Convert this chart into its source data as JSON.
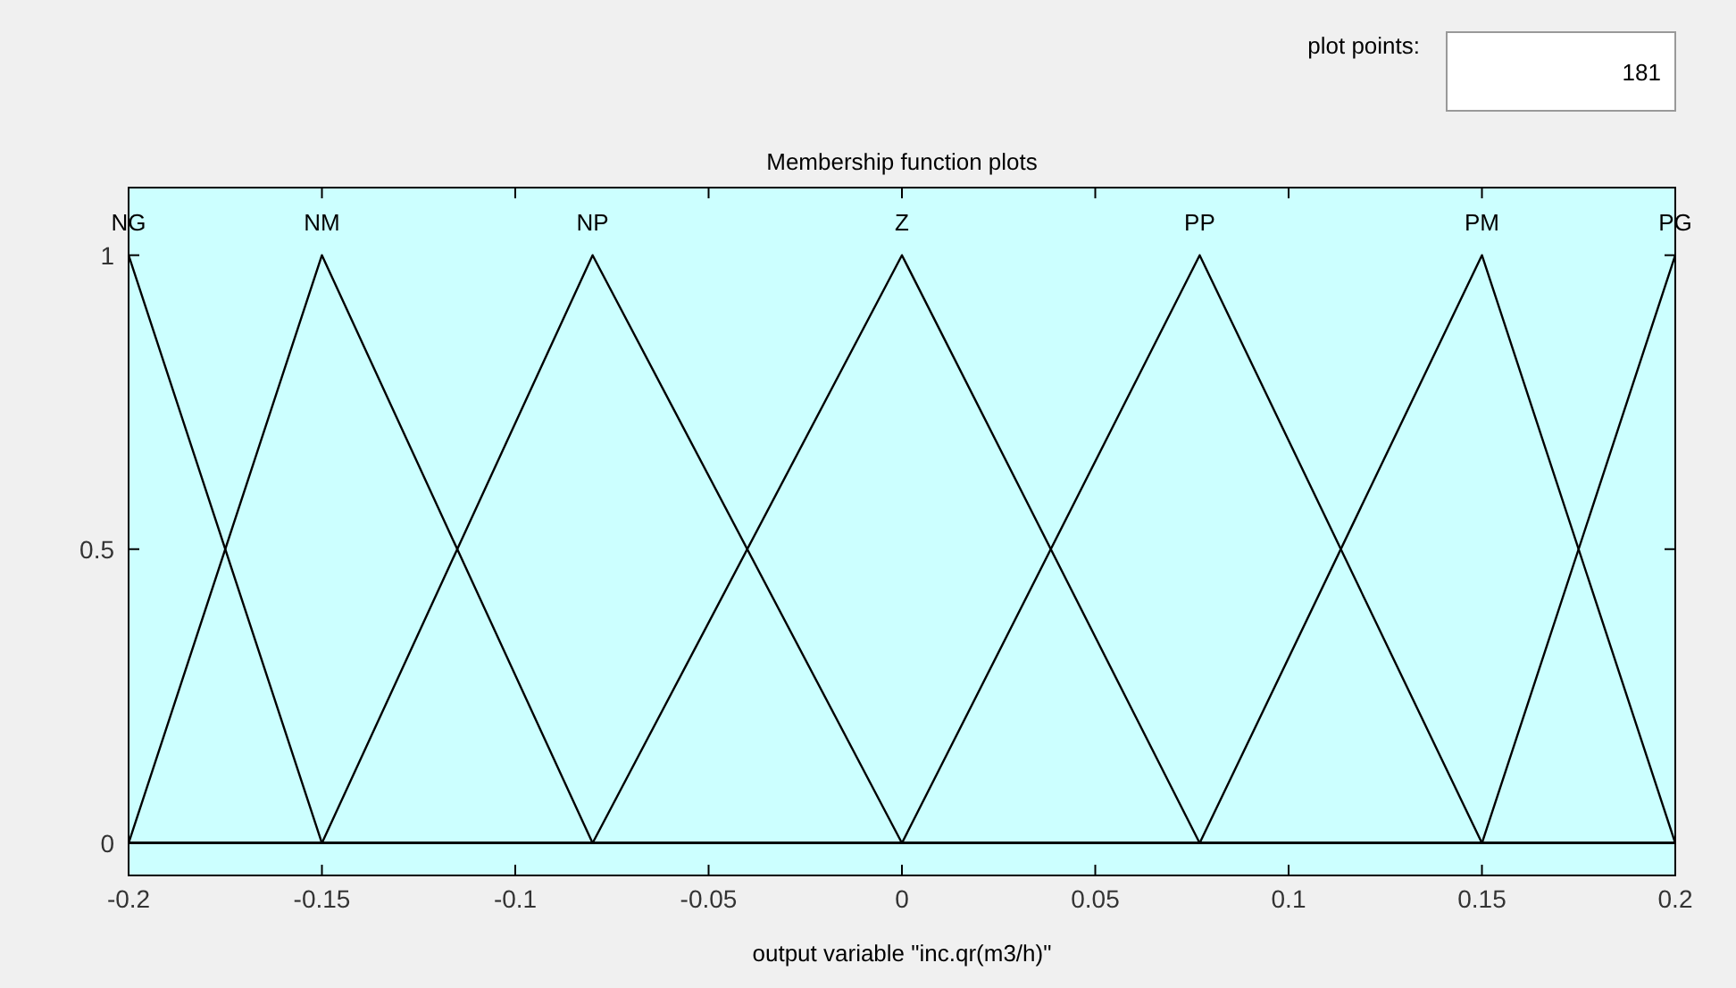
{
  "chart_data": {
    "type": "line",
    "title": "Membership function plots",
    "xlabel": "output variable \"inc.qr(m3/h)\"",
    "xlim": [
      -0.2,
      0.2
    ],
    "ylim": [
      -0.055,
      1.115
    ],
    "xticks": [
      -0.2,
      -0.15,
      -0.1,
      -0.05,
      0,
      0.05,
      0.1,
      0.15,
      0.2
    ],
    "yticks": [
      0,
      0.5,
      1
    ],
    "grid": false,
    "legend": "top",
    "marker": "none",
    "line_style": "solid",
    "annotations": [
      "plot points:",
      "181"
    ],
    "series": [
      {
        "name": "NG",
        "color": "#000000",
        "x": [
          -0.2,
          -0.15,
          0.2
        ],
        "values": [
          1,
          0,
          0
        ]
      },
      {
        "name": "NM",
        "color": "#000000",
        "x": [
          -0.2,
          -0.15,
          -0.08,
          0.2
        ],
        "values": [
          0,
          1,
          0,
          0
        ]
      },
      {
        "name": "NP",
        "color": "#000000",
        "x": [
          -0.2,
          -0.15,
          -0.08,
          0,
          0.2
        ],
        "values": [
          0,
          0,
          1,
          0,
          0
        ]
      },
      {
        "name": "Z",
        "color": "#000000",
        "x": [
          -0.2,
          -0.08,
          0,
          0.077,
          0.2
        ],
        "values": [
          0,
          0,
          1,
          0,
          0
        ]
      },
      {
        "name": "PP",
        "color": "#000000",
        "x": [
          -0.2,
          0,
          0.077,
          0.15,
          0.2
        ],
        "values": [
          0,
          0,
          1,
          0,
          0
        ]
      },
      {
        "name": "PM",
        "color": "#000000",
        "x": [
          -0.2,
          0.077,
          0.15,
          0.2
        ],
        "values": [
          0,
          0,
          1,
          0
        ]
      },
      {
        "name": "PG",
        "color": "#000000",
        "x": [
          -0.2,
          0.15,
          0.2
        ],
        "values": [
          0,
          0,
          1
        ]
      }
    ]
  }
}
